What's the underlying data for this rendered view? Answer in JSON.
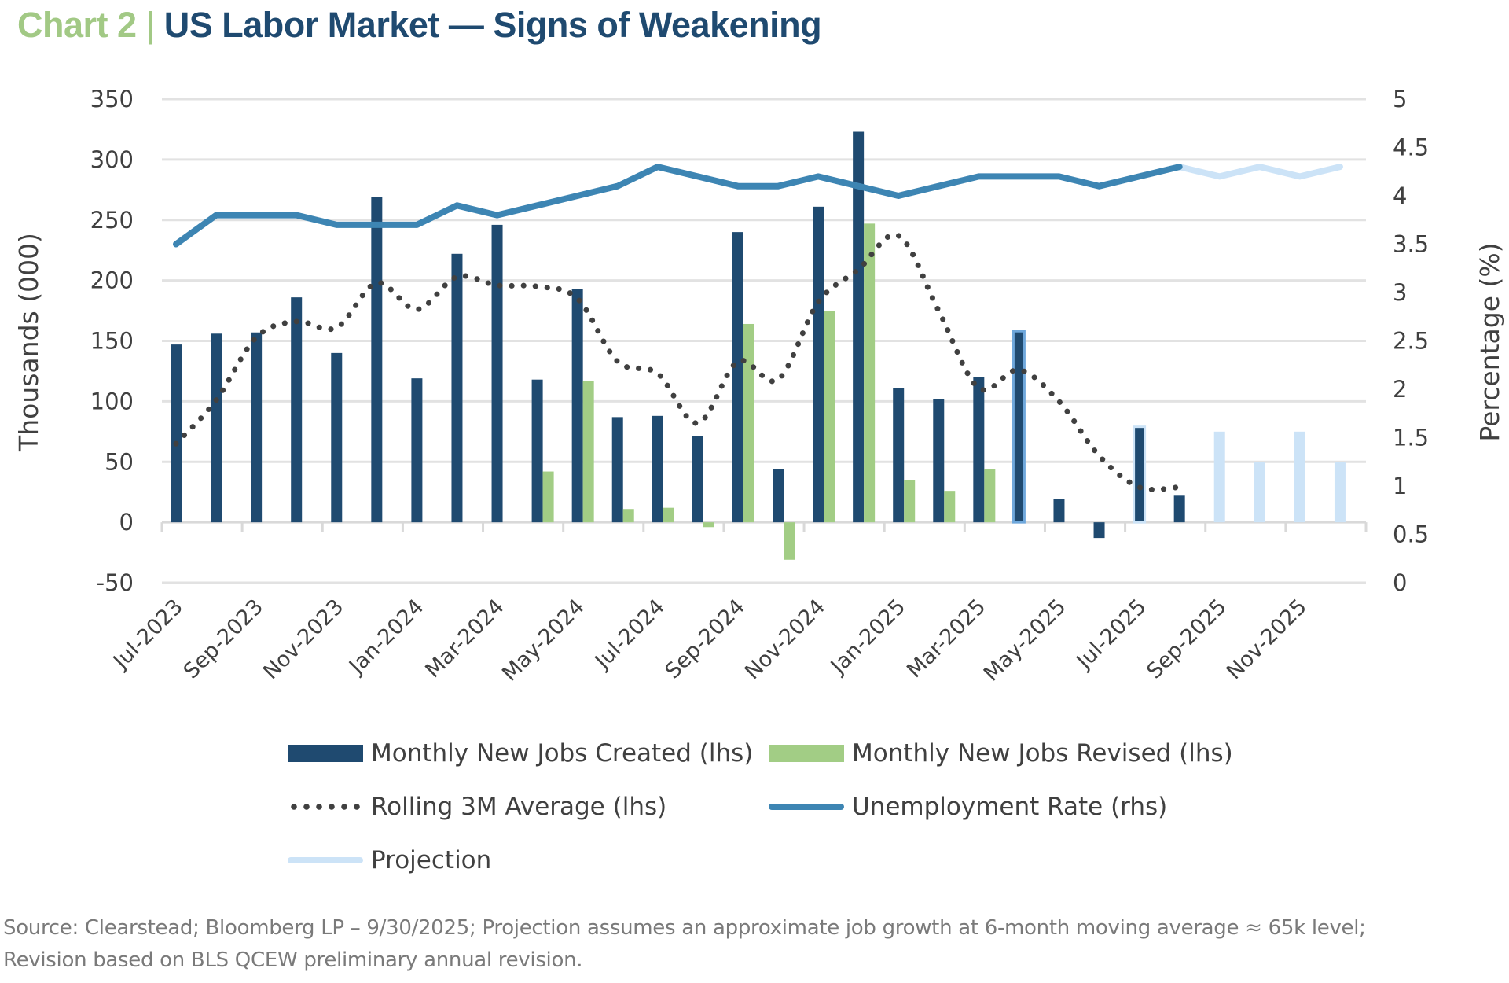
{
  "title": {
    "prefix": "Chart 2",
    "separator": "|",
    "main": "US Labor Market — Signs of Weakening"
  },
  "colors": {
    "created": "#1f4a70",
    "revised": "#a2cd85",
    "rolling_avg": "#404040",
    "unemployment": "#3d85b3",
    "projection": "#cce3f7",
    "highlight_outline": "#6fa8dc",
    "gridline": "#e2e2e2",
    "title_prefix": "#a2c985",
    "title_main": "#1f4a70"
  },
  "legend": {
    "items": [
      {
        "key": "created",
        "label": "Monthly New Jobs Created (lhs)"
      },
      {
        "key": "revised",
        "label": "Monthly New Jobs Revised (lhs)"
      },
      {
        "key": "rolling_avg",
        "label": "Rolling 3M Average (lhs)"
      },
      {
        "key": "unemployment",
        "label": "Unemployment Rate (rhs)"
      },
      {
        "key": "projection",
        "label": "Projection"
      }
    ]
  },
  "source": {
    "line1": "Source: Clearstead; Bloomberg LP – 9/30/2025; Projection assumes an approximate job growth at 6-month moving average ≈ 65k level;",
    "line2": "Revision based on BLS QCEW preliminary annual revision."
  },
  "chart_data": {
    "type": "bar",
    "title": "US Labor Market — Signs of Weakening",
    "ylabel": "Thousands (000)",
    "y2label": "Percentage (%)",
    "ylim": [
      -50,
      350
    ],
    "yticks": [
      350,
      300,
      250,
      200,
      150,
      100,
      50,
      0,
      -50
    ],
    "y2lim": [
      0,
      5
    ],
    "y2ticks": [
      5,
      4.5,
      4,
      3.5,
      3,
      2.5,
      2,
      1.5,
      1,
      0.5,
      0
    ],
    "grid": true,
    "legend_position": "bottom",
    "categories": [
      "Jul-2023",
      "Aug-2023",
      "Sep-2023",
      "Oct-2023",
      "Nov-2023",
      "Dec-2023",
      "Jan-2024",
      "Feb-2024",
      "Mar-2024",
      "Apr-2024",
      "May-2024",
      "Jun-2024",
      "Jul-2024",
      "Aug-2024",
      "Sep-2024",
      "Oct-2024",
      "Nov-2024",
      "Dec-2024",
      "Jan-2025",
      "Feb-2025",
      "Mar-2025",
      "Apr-2025",
      "May-2025",
      "Jun-2025",
      "Jul-2025",
      "Aug-2025",
      "Sep-2025",
      "Oct-2025",
      "Nov-2025",
      "Dec-2025"
    ],
    "xtick_labels": [
      "Jul-2023",
      "Sep-2023",
      "Nov-2023",
      "Jan-2024",
      "Mar-2024",
      "May-2024",
      "Jul-2024",
      "Sep-2024",
      "Nov-2024",
      "Jan-2025",
      "Mar-2025",
      "May-2025",
      "Jul-2025",
      "Sep-2025",
      "Nov-2025"
    ],
    "series": [
      {
        "name": "Monthly New Jobs Created (lhs)",
        "key": "created",
        "kind": "bar",
        "axis": "left",
        "values": [
          147,
          156,
          157,
          186,
          140,
          269,
          119,
          222,
          246,
          118,
          193,
          87,
          88,
          71,
          240,
          44,
          261,
          323,
          111,
          102,
          120,
          158,
          19,
          -13,
          79,
          22,
          null,
          null,
          null,
          null
        ],
        "highlighted": [
          "Apr-2025",
          "Jul-2025"
        ]
      },
      {
        "name": "Monthly New Jobs Revised (lhs)",
        "key": "revised",
        "kind": "bar",
        "axis": "left",
        "values": [
          null,
          null,
          null,
          null,
          null,
          null,
          null,
          null,
          null,
          42,
          117,
          11,
          12,
          -4,
          164,
          -31,
          175,
          247,
          35,
          26,
          44,
          null,
          null,
          null,
          null,
          null,
          null,
          null,
          null,
          null
        ]
      },
      {
        "name": "Projection (bars)",
        "key": "projection_bars",
        "kind": "bar",
        "axis": "left",
        "values": [
          null,
          null,
          null,
          null,
          null,
          null,
          null,
          null,
          null,
          null,
          null,
          null,
          null,
          null,
          null,
          null,
          null,
          null,
          null,
          null,
          null,
          null,
          null,
          null,
          null,
          null,
          75,
          50,
          75,
          50
        ]
      },
      {
        "name": "Rolling 3M Average (lhs)",
        "key": "rolling_avg",
        "kind": "line",
        "axis": "left",
        "values": [
          65,
          101,
          153,
          166,
          161,
          198,
          176,
          203,
          196,
          195,
          185,
          133,
          123,
          82,
          133,
          118,
          182,
          209,
          237,
          175,
          111,
          126,
          100,
          55,
          29,
          29,
          null,
          null,
          null,
          null
        ]
      },
      {
        "name": "Unemployment Rate (rhs)",
        "key": "unemployment",
        "kind": "line",
        "axis": "right",
        "values": [
          3.5,
          3.8,
          3.8,
          3.8,
          3.7,
          3.7,
          3.7,
          3.9,
          3.8,
          3.9,
          4.0,
          4.1,
          4.3,
          4.2,
          4.1,
          4.1,
          4.2,
          4.1,
          4.0,
          4.1,
          4.2,
          4.2,
          4.2,
          4.1,
          4.2,
          4.3,
          null,
          null,
          null,
          null
        ]
      },
      {
        "name": "Projection",
        "key": "projection_line",
        "kind": "line",
        "axis": "right",
        "values": [
          null,
          null,
          null,
          null,
          null,
          null,
          null,
          null,
          null,
          null,
          null,
          null,
          null,
          null,
          null,
          null,
          null,
          null,
          null,
          null,
          null,
          null,
          null,
          null,
          null,
          4.3,
          4.2,
          4.3,
          4.2,
          4.3
        ]
      }
    ]
  }
}
